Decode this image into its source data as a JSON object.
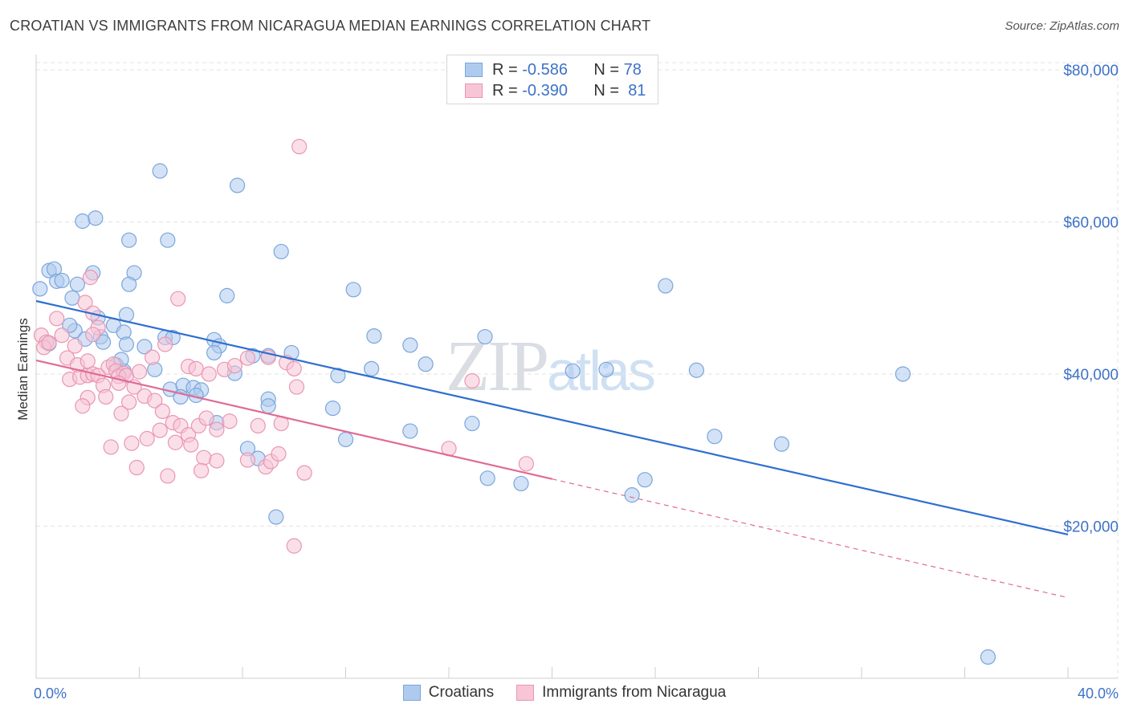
{
  "title": "CROATIAN VS IMMIGRANTS FROM NICARAGUA MEDIAN EARNINGS CORRELATION CHART",
  "source": "Source: ZipAtlas.com",
  "watermark": {
    "part1": "ZIP",
    "part2": "atlas"
  },
  "legend_top": {
    "rows": [
      {
        "r_label": "R =",
        "r_value": "-0.586",
        "n_label": "N =",
        "n_value": "78"
      },
      {
        "r_label": "R =",
        "r_value": "-0.390",
        "n_label": "N =",
        "n_value": "81"
      }
    ]
  },
  "colors": {
    "blue_fill": "#aecbef",
    "blue_stroke": "#7aa6dc",
    "blue_line": "#2e6fd0",
    "pink_fill": "#f8c5d6",
    "pink_stroke": "#e996b2",
    "pink_line": "#e06b95",
    "axis_text": "#3d72c7",
    "grid": "#e3e3e3"
  },
  "chart_data": {
    "type": "scatter",
    "title": "CROATIAN VS IMMIGRANTS FROM NICARAGUA MEDIAN EARNINGS CORRELATION CHART",
    "xlabel": "",
    "ylabel": "Median Earnings",
    "xlim": [
      0,
      40
    ],
    "ylim": [
      0,
      82000
    ],
    "x_tick_labels": [
      "0.0%",
      "40.0%"
    ],
    "y_ticks": [
      20000,
      40000,
      60000,
      80000
    ],
    "y_tick_labels": [
      "$20,000",
      "$40,000",
      "$60,000",
      "$80,000"
    ],
    "grid": true,
    "legend_position": "bottom",
    "series": [
      {
        "name": "Croatians",
        "r": -0.586,
        "n": 78,
        "trend": {
          "x": [
            0,
            40
          ],
          "y": [
            49600,
            18900
          ],
          "dashed_to": null
        },
        "points": [
          [
            0.15,
            51200
          ],
          [
            0.5,
            53600
          ],
          [
            0.7,
            53800
          ],
          [
            0.8,
            52200
          ],
          [
            1.0,
            52300
          ],
          [
            1.8,
            60100
          ],
          [
            1.6,
            51800
          ],
          [
            1.4,
            50000
          ],
          [
            2.3,
            60500
          ],
          [
            2.2,
            53300
          ],
          [
            3.6,
            57600
          ],
          [
            3.5,
            47800
          ],
          [
            3.8,
            53300
          ],
          [
            3.6,
            51800
          ],
          [
            4.8,
            66700
          ],
          [
            5.1,
            57600
          ],
          [
            7.8,
            64800
          ],
          [
            7.4,
            50300
          ],
          [
            9.5,
            56100
          ],
          [
            12.3,
            51100
          ],
          [
            1.5,
            45700
          ],
          [
            2.4,
            47400
          ],
          [
            3.0,
            46400
          ],
          [
            2.5,
            44900
          ],
          [
            2.6,
            44200
          ],
          [
            3.4,
            45500
          ],
          [
            4.2,
            43600
          ],
          [
            5.0,
            44800
          ],
          [
            5.3,
            44800
          ],
          [
            6.9,
            44500
          ],
          [
            7.1,
            43700
          ],
          [
            6.9,
            42800
          ],
          [
            8.4,
            42400
          ],
          [
            9.0,
            42400
          ],
          [
            9.9,
            42800
          ],
          [
            13.1,
            45000
          ],
          [
            14.5,
            43800
          ],
          [
            15.1,
            41300
          ],
          [
            17.4,
            44900
          ],
          [
            13.0,
            40700
          ],
          [
            11.7,
            39800
          ],
          [
            3.1,
            41200
          ],
          [
            3.4,
            40400
          ],
          [
            3.3,
            41900
          ],
          [
            4.6,
            40600
          ],
          [
            5.2,
            38000
          ],
          [
            5.7,
            38500
          ],
          [
            6.1,
            38200
          ],
          [
            6.4,
            37900
          ],
          [
            6.2,
            37200
          ],
          [
            5.6,
            37000
          ],
          [
            7.7,
            40100
          ],
          [
            9.0,
            36700
          ],
          [
            9.0,
            35800
          ],
          [
            11.5,
            35500
          ],
          [
            12.0,
            31400
          ],
          [
            14.5,
            32500
          ],
          [
            16.9,
            33500
          ],
          [
            7.0,
            33600
          ],
          [
            8.2,
            30200
          ],
          [
            8.6,
            28900
          ],
          [
            18.8,
            25600
          ],
          [
            17.5,
            26300
          ],
          [
            20.8,
            40400
          ],
          [
            22.1,
            40600
          ],
          [
            24.4,
            51600
          ],
          [
            25.6,
            40500
          ],
          [
            26.3,
            31800
          ],
          [
            28.9,
            30800
          ],
          [
            33.6,
            40000
          ],
          [
            23.1,
            24100
          ],
          [
            23.6,
            26100
          ],
          [
            9.3,
            21200
          ],
          [
            36.9,
            2800
          ],
          [
            0.5,
            44000
          ],
          [
            1.3,
            46400
          ],
          [
            1.9,
            44600
          ],
          [
            3.5,
            43900
          ]
        ]
      },
      {
        "name": "Immigrants from Nicaragua",
        "r": -0.39,
        "n": 81,
        "trend": {
          "x": [
            0,
            20
          ],
          "y": [
            41800,
            26200
          ],
          "dashed_to": {
            "x": 40,
            "y": 10600
          }
        },
        "points": [
          [
            0.2,
            45100
          ],
          [
            0.4,
            44200
          ],
          [
            0.3,
            43500
          ],
          [
            0.8,
            47300
          ],
          [
            1.0,
            45100
          ],
          [
            1.5,
            43700
          ],
          [
            1.9,
            49400
          ],
          [
            2.1,
            52700
          ],
          [
            2.2,
            48000
          ],
          [
            2.4,
            46100
          ],
          [
            2.2,
            45200
          ],
          [
            1.2,
            42100
          ],
          [
            1.6,
            41200
          ],
          [
            2.0,
            41700
          ],
          [
            2.8,
            40900
          ],
          [
            3.0,
            41300
          ],
          [
            3.1,
            40400
          ],
          [
            3.4,
            40100
          ],
          [
            1.3,
            39300
          ],
          [
            1.7,
            39600
          ],
          [
            2.0,
            39800
          ],
          [
            2.2,
            40000
          ],
          [
            2.4,
            39800
          ],
          [
            2.6,
            38500
          ],
          [
            3.2,
            39700
          ],
          [
            3.5,
            39800
          ],
          [
            3.8,
            38300
          ],
          [
            4.0,
            40300
          ],
          [
            4.5,
            42200
          ],
          [
            5.0,
            43900
          ],
          [
            5.5,
            49900
          ],
          [
            5.9,
            41000
          ],
          [
            6.2,
            40700
          ],
          [
            6.7,
            40000
          ],
          [
            7.3,
            40600
          ],
          [
            7.7,
            41100
          ],
          [
            8.2,
            42100
          ],
          [
            9.0,
            42200
          ],
          [
            9.7,
            41500
          ],
          [
            10.0,
            40700
          ],
          [
            10.1,
            38300
          ],
          [
            2.0,
            36900
          ],
          [
            2.7,
            37000
          ],
          [
            3.2,
            38800
          ],
          [
            3.6,
            36300
          ],
          [
            4.2,
            37100
          ],
          [
            4.6,
            36500
          ],
          [
            4.9,
            35100
          ],
          [
            5.3,
            33600
          ],
          [
            5.6,
            33200
          ],
          [
            5.9,
            32000
          ],
          [
            6.3,
            33200
          ],
          [
            6.6,
            34200
          ],
          [
            7.0,
            32700
          ],
          [
            7.5,
            33800
          ],
          [
            8.6,
            33200
          ],
          [
            9.5,
            33500
          ],
          [
            1.8,
            35800
          ],
          [
            3.3,
            34800
          ],
          [
            3.7,
            30900
          ],
          [
            4.3,
            31500
          ],
          [
            4.8,
            32600
          ],
          [
            5.4,
            31000
          ],
          [
            6.0,
            30700
          ],
          [
            6.5,
            29000
          ],
          [
            7.0,
            28600
          ],
          [
            8.2,
            28700
          ],
          [
            8.9,
            27800
          ],
          [
            9.1,
            28500
          ],
          [
            9.4,
            29500
          ],
          [
            2.9,
            30400
          ],
          [
            3.9,
            27700
          ],
          [
            5.1,
            26600
          ],
          [
            6.4,
            27300
          ],
          [
            10.4,
            27000
          ],
          [
            10.0,
            17400
          ],
          [
            10.2,
            69900
          ],
          [
            16.0,
            30200
          ],
          [
            16.9,
            39100
          ],
          [
            19.0,
            28200
          ],
          [
            0.5,
            44100
          ]
        ]
      }
    ]
  }
}
